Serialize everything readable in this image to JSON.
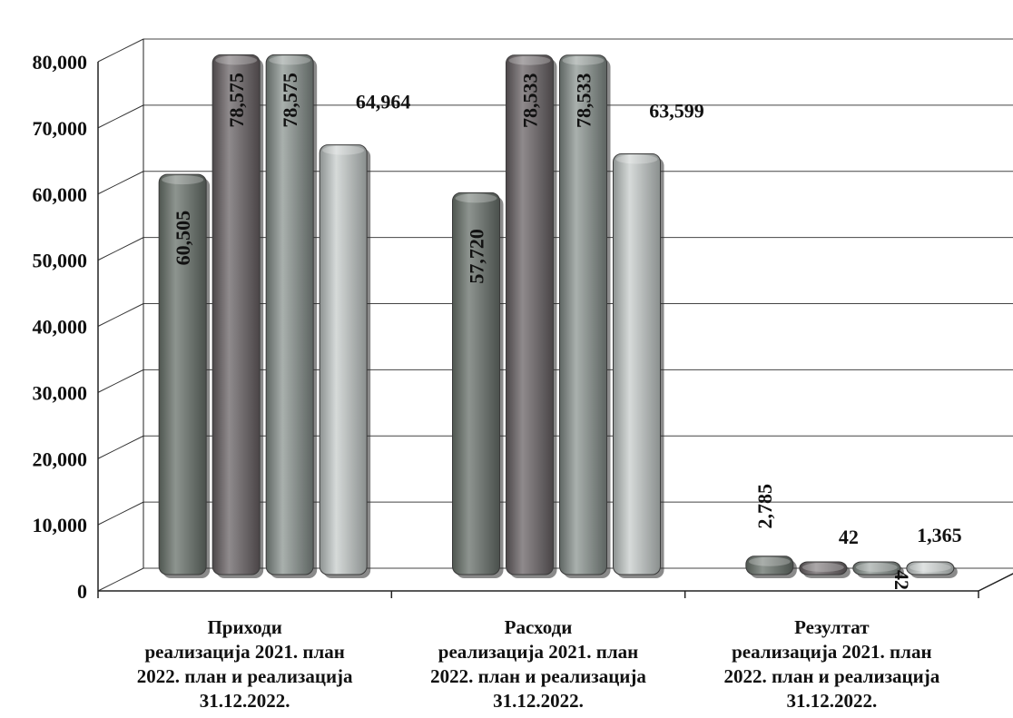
{
  "chart_data": {
    "type": "bar",
    "categories": [
      [
        "Приходи",
        "реализација 2021. план",
        "2022. план и реализација",
        "31.12.2022."
      ],
      [
        "Расходи",
        "реализација 2021. план",
        "2022. план и реализација",
        "31.12.2022."
      ],
      [
        "Резултат",
        "реализација 2021. план",
        "2022. план и реализација",
        "31.12.2022."
      ]
    ],
    "series": [
      {
        "values": [
          60505,
          57720,
          2785
        ],
        "labels": [
          "60,505",
          "57,720",
          "2,785"
        ],
        "color": "#6f7670"
      },
      {
        "values": [
          78575,
          78533,
          42
        ],
        "labels": [
          "78,575",
          "78,533",
          "42"
        ],
        "color": "#6e6a6c"
      },
      {
        "values": [
          78575,
          78533,
          42
        ],
        "labels": [
          "78,575",
          "78,533",
          "42"
        ],
        "color": "#868d8a"
      },
      {
        "values": [
          64964,
          63599,
          1365
        ],
        "labels": [
          "64,964",
          "63,599",
          "1,365"
        ],
        "color": "#b1b6b5"
      }
    ],
    "yticks": [
      "0",
      "10,000",
      "20,000",
      "30,000",
      "40,000",
      "50,000",
      "60,000",
      "70,000",
      "80,000"
    ],
    "ylim": [
      0,
      80000
    ],
    "grid": true,
    "three_d": true
  }
}
